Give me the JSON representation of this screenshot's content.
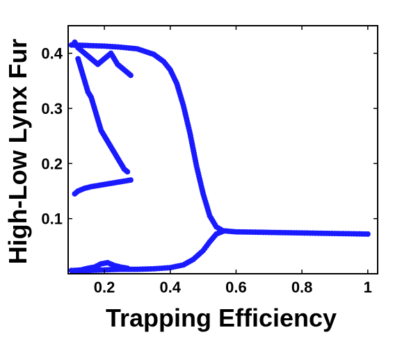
{
  "chart_data": {
    "type": "scatter",
    "title": "",
    "xlabel": "Trapping Efficiency",
    "ylabel": "High-Low Lynx Fur",
    "xlim": [
      0.09,
      1.03
    ],
    "ylim": [
      0.0,
      0.45
    ],
    "xticks": [
      0.2,
      0.4,
      0.6,
      0.8,
      1.0
    ],
    "xtick_labels": [
      "0.2",
      "0.4",
      "0.6",
      "0.8",
      "1"
    ],
    "yticks": [
      0.1,
      0.2,
      0.3,
      0.4
    ],
    "ytick_labels": [
      "0.1",
      "0.2",
      "0.3",
      "0.4"
    ],
    "grid": false,
    "legend": "none",
    "marker_color": "#1a1aff",
    "series": [
      {
        "branch": "upper",
        "x": [
          0.1,
          0.15,
          0.2,
          0.25,
          0.3,
          0.35,
          0.38,
          0.4,
          0.42,
          0.44,
          0.46,
          0.48,
          0.5,
          0.52,
          0.54,
          0.56,
          0.6,
          0.7,
          0.8,
          0.9,
          1.0
        ],
        "y": [
          0.415,
          0.414,
          0.413,
          0.411,
          0.408,
          0.398,
          0.385,
          0.37,
          0.345,
          0.305,
          0.255,
          0.195,
          0.145,
          0.105,
          0.085,
          0.078,
          0.076,
          0.075,
          0.074,
          0.073,
          0.072
        ]
      },
      {
        "branch": "lower",
        "x": [
          0.1,
          0.15,
          0.2,
          0.25,
          0.3,
          0.35,
          0.4,
          0.44,
          0.47,
          0.5,
          0.52,
          0.54,
          0.56
        ],
        "y": [
          0.006,
          0.006,
          0.007,
          0.008,
          0.008,
          0.009,
          0.011,
          0.016,
          0.026,
          0.042,
          0.058,
          0.072,
          0.077
        ]
      },
      {
        "branch": "low-trapping-cloud-upper",
        "x": [
          0.11,
          0.12,
          0.14,
          0.16,
          0.18,
          0.2,
          0.22,
          0.24,
          0.26,
          0.28
        ],
        "y": [
          0.42,
          0.41,
          0.4,
          0.39,
          0.38,
          0.39,
          0.4,
          0.38,
          0.37,
          0.36
        ]
      },
      {
        "branch": "low-trapping-cloud-middle",
        "x": [
          0.12,
          0.13,
          0.14,
          0.15,
          0.16,
          0.17,
          0.18,
          0.19,
          0.2,
          0.21,
          0.22,
          0.23,
          0.24,
          0.25,
          0.26,
          0.27
        ],
        "y": [
          0.39,
          0.37,
          0.35,
          0.33,
          0.32,
          0.3,
          0.28,
          0.26,
          0.25,
          0.24,
          0.23,
          0.22,
          0.21,
          0.2,
          0.19,
          0.185
        ]
      },
      {
        "branch": "low-trapping-cloud-lower",
        "x": [
          0.11,
          0.12,
          0.14,
          0.16,
          0.18,
          0.2,
          0.22,
          0.24,
          0.26,
          0.28
        ],
        "y": [
          0.145,
          0.15,
          0.155,
          0.158,
          0.16,
          0.162,
          0.164,
          0.166,
          0.168,
          0.17
        ]
      },
      {
        "branch": "low-trapping-bottom",
        "x": [
          0.11,
          0.13,
          0.15,
          0.17,
          0.19,
          0.21,
          0.23,
          0.25,
          0.27
        ],
        "y": [
          0.006,
          0.007,
          0.01,
          0.012,
          0.018,
          0.02,
          0.015,
          0.012,
          0.01
        ]
      }
    ]
  }
}
